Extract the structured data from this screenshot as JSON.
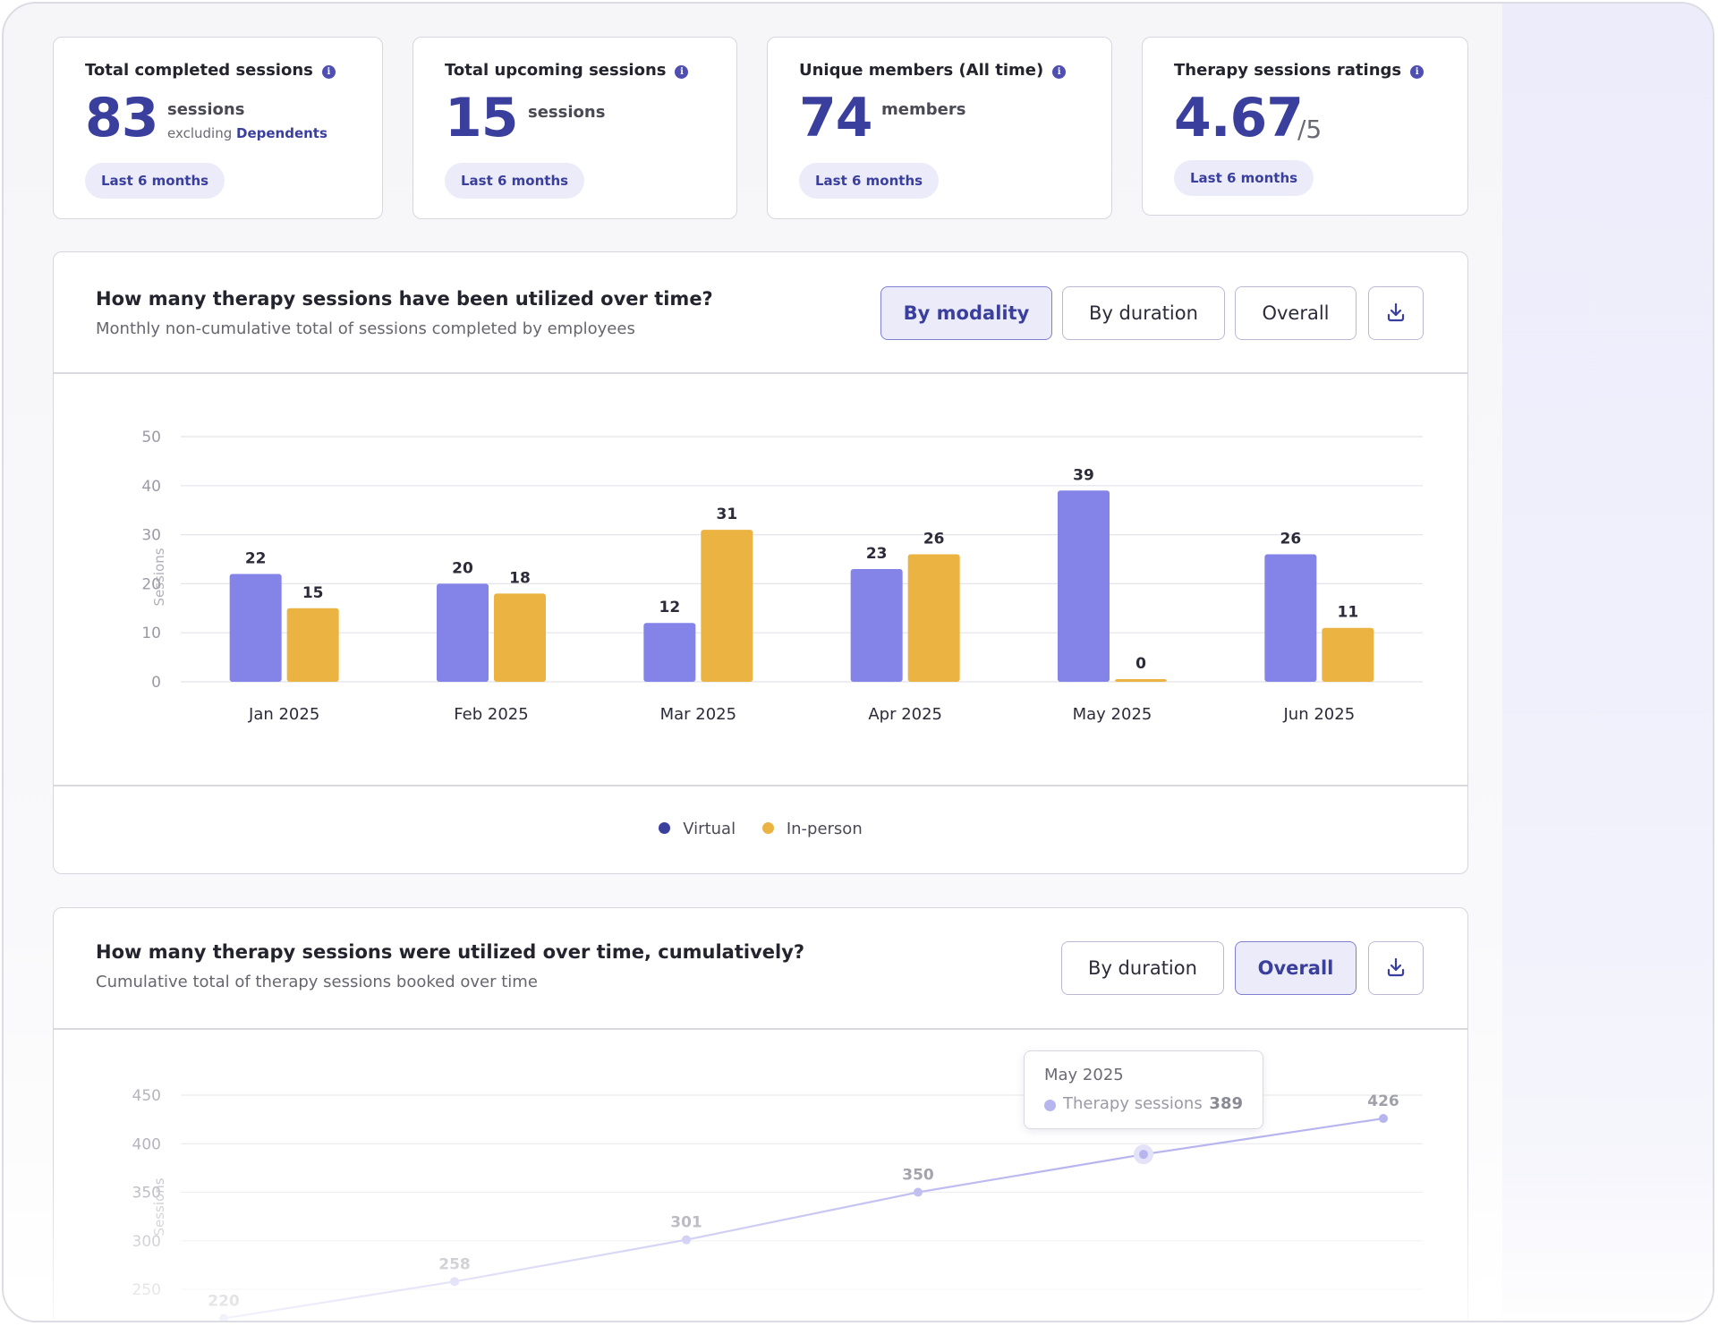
{
  "stats": [
    {
      "title": "Total completed sessions",
      "value": "83",
      "unit": "sessions",
      "sub_prefix": "excluding",
      "sub_link": "Dependents",
      "pill": "Last 6 months"
    },
    {
      "title": "Total upcoming sessions",
      "value": "15",
      "unit": "sessions",
      "pill": "Last 6 months"
    },
    {
      "title": "Unique members (All time)",
      "value": "74",
      "unit": "members",
      "pill": "Last 6 months"
    },
    {
      "title": "Therapy sessions ratings",
      "value": "4.67",
      "unit": "/5",
      "pill": "Last 6 months"
    }
  ],
  "panel1": {
    "title": "How many therapy sessions have been utilized over time?",
    "subtitle": "Monthly non-cumulative total of sessions completed by employees",
    "buttons": {
      "by_modality": "By modality",
      "by_duration": "By duration",
      "overall": "Overall"
    },
    "active_button": "by_modality"
  },
  "panel2": {
    "title": "How many therapy sessions were utilized over time, cumulatively?",
    "subtitle": "Cumulative total of therapy sessions booked over time",
    "buttons": {
      "by_duration": "By duration",
      "overall": "Overall"
    },
    "active_button": "overall",
    "tooltip": {
      "title": "May 2025",
      "label": "Therapy sessions",
      "value": "389"
    }
  },
  "chart_data": [
    {
      "type": "bar",
      "categories": [
        "Jan 2025",
        "Feb 2025",
        "Mar 2025",
        "Apr 2025",
        "May 2025",
        "Jun 2025"
      ],
      "series": [
        {
          "name": "Virtual",
          "values": [
            22,
            20,
            12,
            23,
            39,
            26
          ],
          "color": "#8383e8"
        },
        {
          "name": "In-person",
          "values": [
            15,
            18,
            31,
            26,
            0,
            11
          ],
          "color": "#ebb442"
        }
      ],
      "legend_colors": {
        "Virtual": "#3a3f9e",
        "In-person": "#ebb442"
      },
      "ylabel": "Sessions",
      "ylim": [
        0,
        50
      ],
      "yticks": [
        0,
        10,
        20,
        30,
        40,
        50
      ],
      "grid": true,
      "data_labels": true,
      "legend_position": "bottom"
    },
    {
      "type": "line",
      "series": [
        {
          "name": "Therapy sessions",
          "values": [
            220,
            258,
            301,
            350,
            389,
            426
          ],
          "color": "#b7b5ee"
        }
      ],
      "point_labels": [
        "220",
        "258",
        "301",
        "350",
        "",
        "426"
      ],
      "ylabel": "Sessions",
      "yticks": [
        250,
        300,
        350,
        400,
        450
      ],
      "ytick_labels": [
        "250",
        "300",
        "350",
        "400",
        "450"
      ],
      "grid": true,
      "highlighted_index": 4
    }
  ]
}
